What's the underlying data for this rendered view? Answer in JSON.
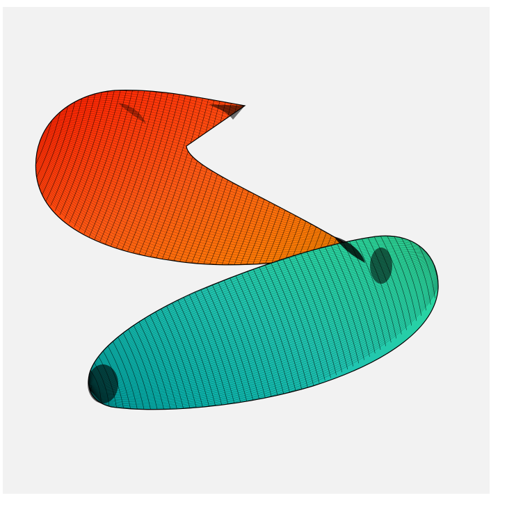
{
  "figure": {
    "description_kind": "3d-mesh-surface",
    "colors": {
      "panel_background": "#f2f2f2",
      "mesh_line": "#000000",
      "upper_lobe_start": "#ff1a00",
      "upper_lobe_mid": "#ff5a14",
      "upper_lobe_end": "#ff8a00",
      "lower_lobe_start": "#00a8a8",
      "lower_lobe_mid": "#20c4b0",
      "lower_lobe_end": "#30e098"
    },
    "mesh": {
      "meridians": 60,
      "parallels": 70
    }
  }
}
